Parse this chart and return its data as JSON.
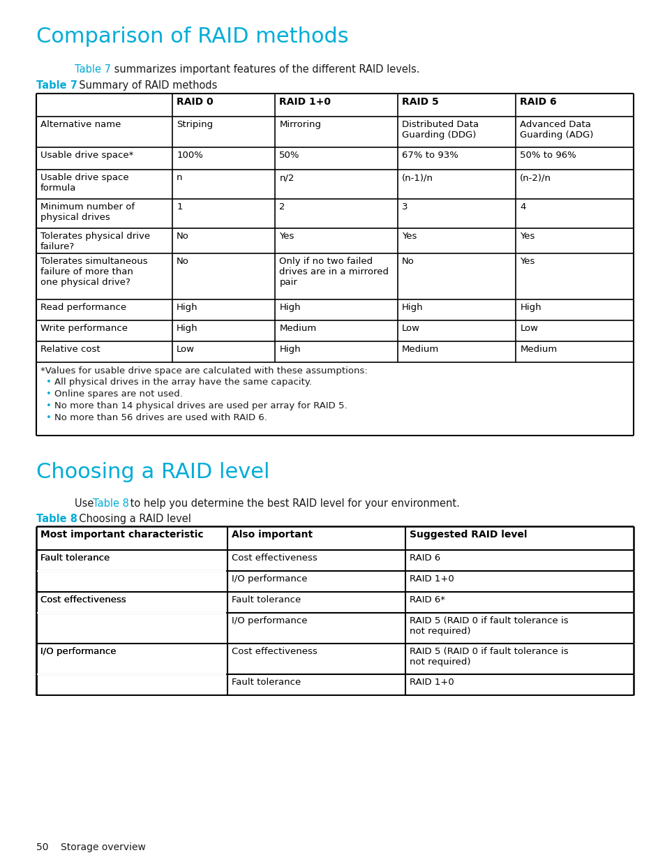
{
  "page_bg": "#ffffff",
  "title1": "Comparison of RAID methods",
  "cyan": "#00acd8",
  "black": "#1a1a1a",
  "table7_headers": [
    "",
    "RAID 0",
    "RAID 1+0",
    "RAID 5",
    "RAID 6"
  ],
  "table7_rows": [
    [
      "Alternative name",
      "Striping",
      "Mirroring",
      "Distributed Data\nGuarding (DDG)",
      "Advanced Data\nGuarding (ADG)"
    ],
    [
      "Usable drive space*",
      "100%",
      "50%",
      "67% to 93%",
      "50% to 96%"
    ],
    [
      "Usable drive space\nformula",
      "n",
      "n/2",
      "(n-1)/n",
      "(n-2)/n"
    ],
    [
      "Minimum number of\nphysical drives",
      "1",
      "2",
      "3",
      "4"
    ],
    [
      "Tolerates physical drive\nfailure?",
      "No",
      "Yes",
      "Yes",
      "Yes"
    ],
    [
      "Tolerates simultaneous\nfailure of more than\none physical drive?",
      "No",
      "Only if no two failed\ndrives are in a mirrored\npair",
      "No",
      "Yes"
    ],
    [
      "Read performance",
      "High",
      "High",
      "High",
      "High"
    ],
    [
      "Write performance",
      "High",
      "Medium",
      "Low",
      "Low"
    ],
    [
      "Relative cost",
      "Low",
      "High",
      "Medium",
      "Medium"
    ]
  ],
  "table7_footnote": "*Values for usable drive space are calculated with these assumptions:",
  "table7_bullets": [
    "All physical drives in the array have the same capacity.",
    "Online spares are not used.",
    "No more than 14 physical drives are used per array for RAID 5.",
    "No more than 56 drives are used with RAID 6."
  ],
  "title2": "Choosing a RAID level",
  "table8_headers": [
    "Most important characteristic",
    "Also important",
    "Suggested RAID level"
  ],
  "table8_rows": [
    [
      "Fault tolerance",
      "Cost effectiveness",
      "RAID 6"
    ],
    [
      "",
      "I/O performance",
      "RAID 1+0"
    ],
    [
      "Cost effectiveness",
      "Fault tolerance",
      "RAID 6*"
    ],
    [
      "",
      "I/O performance",
      "RAID 5 (RAID 0 if fault tolerance is\nnot required)"
    ],
    [
      "I/O performance",
      "Cost effectiveness",
      "RAID 5 (RAID 0 if fault tolerance is\nnot required)"
    ],
    [
      "",
      "Fault tolerance",
      "RAID 1+0"
    ]
  ],
  "footer_text": "50    Storage overview"
}
